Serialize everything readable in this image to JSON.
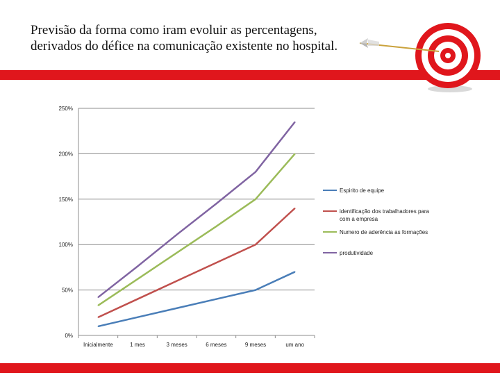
{
  "slide": {
    "title_line1": "Previsão da forma como iram evoluir as percentagens,",
    "title_line2": "derivados do défice na comunicação existente no hospital."
  },
  "colors": {
    "band": "#e0161c",
    "grid": "#8c8c8c"
  },
  "icons": {
    "logo": "target-with-arrow-icon"
  },
  "chart_data": {
    "type": "line",
    "categories": [
      "Inicialmente",
      "1 mes",
      "3 meses",
      "6 meses",
      "9 meses",
      "um ano"
    ],
    "y_tick_labels": [
      "0%",
      "50%",
      "100%",
      "150%",
      "200%",
      "250%"
    ],
    "y_ticks": [
      0,
      50,
      100,
      150,
      200,
      250
    ],
    "ylim": [
      0,
      250
    ],
    "grid": true,
    "legend_position": "right",
    "series": [
      {
        "name": "Espirito de equipe",
        "color": "#4a7eb8",
        "values": [
          10,
          20,
          30,
          40,
          50,
          70
        ]
      },
      {
        "name": "identificação dos trabalhadores para com a empresa",
        "color": "#c0504d",
        "values": [
          20,
          40,
          60,
          80,
          100,
          140
        ]
      },
      {
        "name": "Numero de aderência as formações",
        "color": "#9bbb59",
        "values": [
          33,
          62,
          91,
          120,
          150,
          200
        ]
      },
      {
        "name": "produtividade",
        "color": "#8064a2",
        "values": [
          42,
          76,
          111,
          145,
          180,
          235
        ]
      }
    ]
  }
}
